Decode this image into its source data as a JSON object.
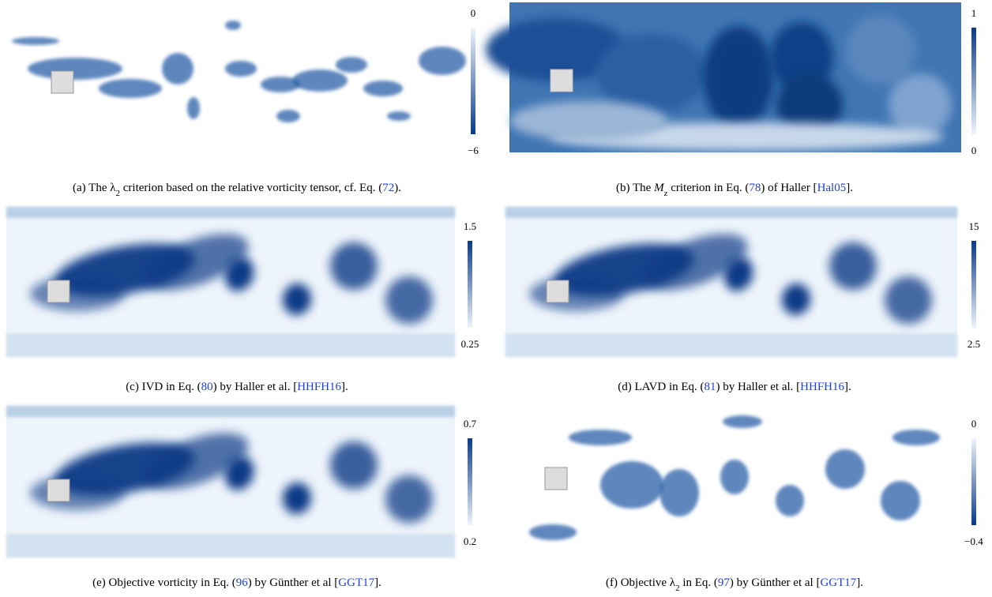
{
  "figure": {
    "panels": [
      {
        "caption": [
          {
            "text": "(a) The "
          },
          {
            "text": "λ"
          },
          {
            "text": "2",
            "style": "sub"
          },
          {
            "text": " criterion based on the relative vorticity tensor, cf. Eq. ("
          },
          {
            "text": "72",
            "style": "link"
          },
          {
            "text": ")."
          }
        ],
        "colorbar": {
          "top": 0,
          "bottom": {
            "value": -6,
            "label": "−6"
          }
        }
      },
      {
        "caption": [
          {
            "text": "(b) The "
          },
          {
            "text": "M",
            "style": "italic"
          },
          {
            "text": "z",
            "style": "sub"
          },
          {
            "text": " criterion in Eq. ("
          },
          {
            "text": "78",
            "style": "link"
          },
          {
            "text": ") of Haller ["
          },
          {
            "text": "Hal05",
            "style": "link"
          },
          {
            "text": "]."
          }
        ],
        "colorbar": {
          "top": 1,
          "bottom": 0
        }
      },
      {
        "caption": [
          {
            "text": "(c) IVD in Eq. ("
          },
          {
            "text": "80",
            "style": "link"
          },
          {
            "text": ") by Haller et al. ["
          },
          {
            "text": "HHFH16",
            "style": "link"
          },
          {
            "text": "]."
          }
        ],
        "colorbar": {
          "top": 1.5,
          "bottom": 0.25
        }
      },
      {
        "caption": [
          {
            "text": "(d) LAVD in Eq. ("
          },
          {
            "text": "81",
            "style": "link"
          },
          {
            "text": ") by Haller et al. ["
          },
          {
            "text": "HHFH16",
            "style": "link"
          },
          {
            "text": "]."
          }
        ],
        "colorbar": {
          "top": 15,
          "bottom": 2.5
        }
      },
      {
        "caption": [
          {
            "text": "(e) Objective vorticity in Eq. ("
          },
          {
            "text": "96",
            "style": "link"
          },
          {
            "text": ") by Günther et al ["
          },
          {
            "text": "GGT17",
            "style": "link"
          },
          {
            "text": "]."
          }
        ],
        "colorbar": {
          "top": 0.7,
          "bottom": 0.2
        }
      },
      {
        "caption": [
          {
            "text": "(f) Objective "
          },
          {
            "text": "λ"
          },
          {
            "text": "2",
            "style": "sub"
          },
          {
            "text": " in Eq. ("
          },
          {
            "text": "97",
            "style": "link"
          },
          {
            "text": ") by Günther et al ["
          },
          {
            "text": "GGT17",
            "style": "link"
          },
          {
            "text": "]."
          }
        ],
        "colorbar": {
          "top": 0,
          "bottom": {
            "value": -0.4,
            "label": "−0.4"
          }
        }
      }
    ]
  }
}
